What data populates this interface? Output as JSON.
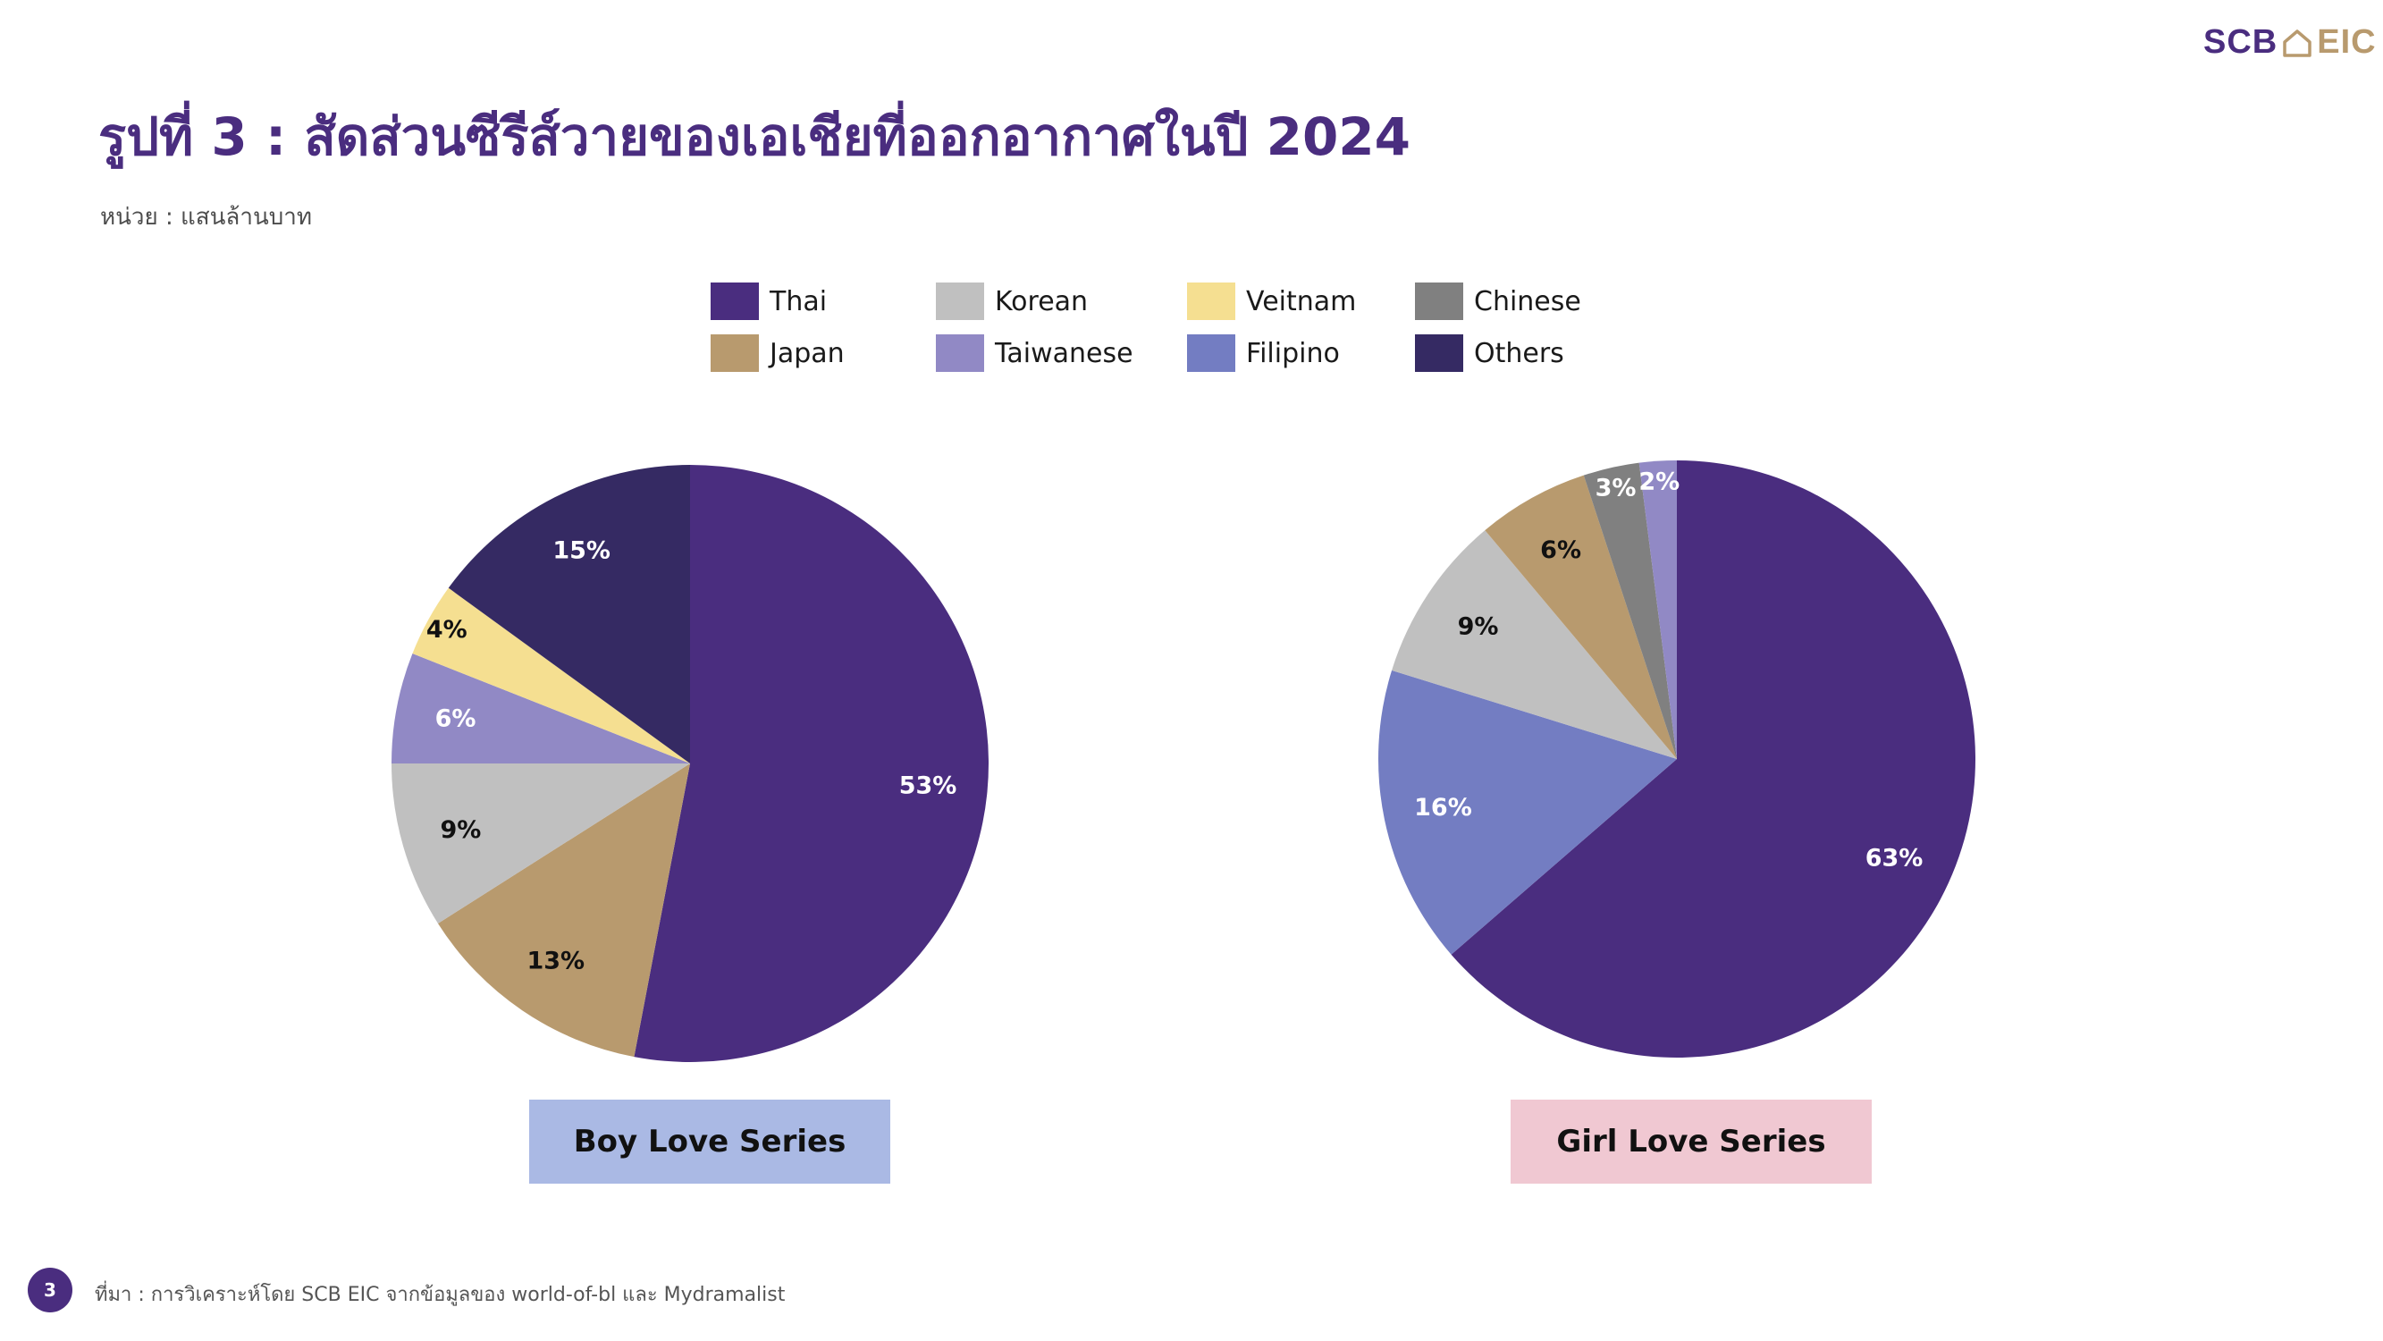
{
  "logo": {
    "left": "SCB",
    "right": "EIC"
  },
  "title": "รูปที่ 3 : สัดส่วนซีรีส์วายของเอเชียที่ออกอากาศในปี 2024",
  "unit": "หน่วย : แสนล้านบาท",
  "legend": [
    {
      "label": "Thai",
      "color": "#4a2d7f"
    },
    {
      "label": "Korean",
      "color": "#c0c0c0"
    },
    {
      "label": "Veitnam",
      "color": "#f5df91"
    },
    {
      "label": "Chinese",
      "color": "#808080"
    },
    {
      "label": "Japan",
      "color": "#b89a6e"
    },
    {
      "label": "Taiwanese",
      "color": "#9189c5"
    },
    {
      "label": "Filipino",
      "color": "#737dc2"
    },
    {
      "label": "Others",
      "color": "#352a63"
    }
  ],
  "chart_data": [
    {
      "type": "pie",
      "title": "Boy Love Series",
      "slices": [
        {
          "label": "Thai",
          "value": 53,
          "text": "53%",
          "color": "#4a2d7f",
          "label_color": "#ffffff"
        },
        {
          "label": "Japan",
          "value": 13,
          "text": "13%",
          "color": "#b89a6e",
          "label_color": "#111111"
        },
        {
          "label": "Korean",
          "value": 9,
          "text": "9%",
          "color": "#c0c0c0",
          "label_color": "#111111"
        },
        {
          "label": "Taiwanese",
          "value": 6,
          "text": "6%",
          "color": "#9189c5",
          "label_color": "#ffffff"
        },
        {
          "label": "Veitnam",
          "value": 4,
          "text": "4%",
          "color": "#f5df91",
          "label_color": "#111111"
        },
        {
          "label": "Others",
          "value": 15,
          "text": "15%",
          "color": "#352a63",
          "label_color": "#ffffff"
        }
      ],
      "box_color": "#aab9e4"
    },
    {
      "type": "pie",
      "title": "Girl Love Series",
      "slices": [
        {
          "label": "Thai",
          "value": 63,
          "text": "63%",
          "color": "#4a2d7f",
          "label_color": "#ffffff"
        },
        {
          "label": "Filipino",
          "value": 16,
          "text": "16%",
          "color": "#737dc2",
          "label_color": "#ffffff"
        },
        {
          "label": "Korean",
          "value": 9,
          "text": "9%",
          "color": "#c0c0c0",
          "label_color": "#111111"
        },
        {
          "label": "Japan",
          "value": 6,
          "text": "6%",
          "color": "#b89a6e",
          "label_color": "#111111"
        },
        {
          "label": "Chinese",
          "value": 3,
          "text": "3%",
          "color": "#808080",
          "label_color": "#ffffff"
        },
        {
          "label": "Taiwanese",
          "value": 2,
          "text": "2%",
          "color": "#9189c5",
          "label_color": "#ffffff"
        }
      ],
      "box_color": "#f0c8d2"
    }
  ],
  "page_number": "3",
  "source": "ที่มา : การวิเคราะห์โดย SCB EIC จากข้อมูลของ world-of-bl และ Mydramalist"
}
